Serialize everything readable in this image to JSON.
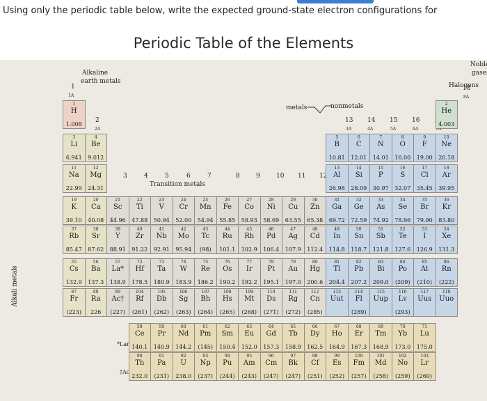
{
  "instruction": "Using only the periodic table below, write the expected ground-state electron configurations for",
  "title": "Periodic Table of the Elements",
  "labels": {
    "alkaline": "Alkaline",
    "earth_metals": "earth metals",
    "noble": "Noble",
    "gases": "gases",
    "halogens": "Halogens",
    "metals": "metals",
    "nonmetals": "nonmetals",
    "transition_metals": "Transition metals",
    "alkali_metals": "Alkali metals",
    "lanthanides": "*Lanthanides",
    "actinides": "†Actinides"
  },
  "group_labels": {
    "g1": "1",
    "g1a": "1A",
    "g2": "2",
    "g2a": "2A",
    "g3": "3",
    "g4": "4",
    "g5": "5",
    "g6": "6",
    "g7": "7",
    "g8": "8",
    "g9": "9",
    "g10": "10",
    "g11": "11",
    "g12": "12",
    "g13": "13",
    "g13a": "3A",
    "g14": "14",
    "g14a": "4A",
    "g15": "15",
    "g15a": "5A",
    "g16": "16",
    "g16a": "6A",
    "g17": "17",
    "g17a": "7A",
    "g18": "18",
    "g18a": "8A"
  },
  "elements": [
    {
      "z": "1",
      "s": "H",
      "m": "1.008",
      "c": 1,
      "r": 1,
      "k": "h"
    },
    {
      "z": "2",
      "s": "He",
      "m": "4.003",
      "c": 18,
      "r": 1,
      "k": "he"
    },
    {
      "z": "3",
      "s": "Li",
      "m": "6.941",
      "c": 1,
      "r": 2,
      "k": "s"
    },
    {
      "z": "4",
      "s": "Be",
      "m": "9.012",
      "c": 2,
      "r": 2,
      "k": "s"
    },
    {
      "z": "5",
      "s": "B",
      "m": "10.81",
      "c": 13,
      "r": 2,
      "k": "p"
    },
    {
      "z": "6",
      "s": "C",
      "m": "12.01",
      "c": 14,
      "r": 2,
      "k": "p"
    },
    {
      "z": "7",
      "s": "N",
      "m": "14.01",
      "c": 15,
      "r": 2,
      "k": "p"
    },
    {
      "z": "8",
      "s": "O",
      "m": "16.00",
      "c": 16,
      "r": 2,
      "k": "p"
    },
    {
      "z": "9",
      "s": "F",
      "m": "19.00",
      "c": 17,
      "r": 2,
      "k": "p"
    },
    {
      "z": "10",
      "s": "Ne",
      "m": "20.18",
      "c": 18,
      "r": 2,
      "k": "p"
    },
    {
      "z": "11",
      "s": "Na",
      "m": "22.99",
      "c": 1,
      "r": 3,
      "k": "s"
    },
    {
      "z": "12",
      "s": "Mg",
      "m": "24.31",
      "c": 2,
      "r": 3,
      "k": "s"
    },
    {
      "z": "13",
      "s": "Al",
      "m": "26.98",
      "c": 13,
      "r": 3,
      "k": "p"
    },
    {
      "z": "14",
      "s": "Si",
      "m": "28.09",
      "c": 14,
      "r": 3,
      "k": "p"
    },
    {
      "z": "15",
      "s": "P",
      "m": "30.97",
      "c": 15,
      "r": 3,
      "k": "p"
    },
    {
      "z": "16",
      "s": "S",
      "m": "32.07",
      "c": 16,
      "r": 3,
      "k": "p"
    },
    {
      "z": "17",
      "s": "Cl",
      "m": "35.45",
      "c": 17,
      "r": 3,
      "k": "p"
    },
    {
      "z": "18",
      "s": "Ar",
      "m": "39.95",
      "c": 18,
      "r": 3,
      "k": "p"
    },
    {
      "z": "19",
      "s": "K",
      "m": "39.10",
      "c": 1,
      "r": 4,
      "k": "s"
    },
    {
      "z": "20",
      "s": "Ca",
      "m": "40.08",
      "c": 2,
      "r": 4,
      "k": "s"
    },
    {
      "z": "21",
      "s": "Sc",
      "m": "44.96",
      "c": 3,
      "r": 4,
      "k": "d"
    },
    {
      "z": "22",
      "s": "Ti",
      "m": "47.88",
      "c": 4,
      "r": 4,
      "k": "d"
    },
    {
      "z": "23",
      "s": "V",
      "m": "50.94",
      "c": 5,
      "r": 4,
      "k": "d"
    },
    {
      "z": "24",
      "s": "Cr",
      "m": "52.00",
      "c": 6,
      "r": 4,
      "k": "d"
    },
    {
      "z": "25",
      "s": "Mn",
      "m": "54.94",
      "c": 7,
      "r": 4,
      "k": "d"
    },
    {
      "z": "26",
      "s": "Fe",
      "m": "55.85",
      "c": 8,
      "r": 4,
      "k": "d"
    },
    {
      "z": "27",
      "s": "Co",
      "m": "58.93",
      "c": 9,
      "r": 4,
      "k": "d"
    },
    {
      "z": "28",
      "s": "Ni",
      "m": "58.69",
      "c": 10,
      "r": 4,
      "k": "d"
    },
    {
      "z": "29",
      "s": "Cu",
      "m": "63.55",
      "c": 11,
      "r": 4,
      "k": "d"
    },
    {
      "z": "30",
      "s": "Zn",
      "m": "65.38",
      "c": 12,
      "r": 4,
      "k": "d"
    },
    {
      "z": "31",
      "s": "Ga",
      "m": "69.72",
      "c": 13,
      "r": 4,
      "k": "p"
    },
    {
      "z": "32",
      "s": "Ge",
      "m": "72.59",
      "c": 14,
      "r": 4,
      "k": "p"
    },
    {
      "z": "33",
      "s": "As",
      "m": "74.92",
      "c": 15,
      "r": 4,
      "k": "p"
    },
    {
      "z": "34",
      "s": "Se",
      "m": "78.96",
      "c": 16,
      "r": 4,
      "k": "p"
    },
    {
      "z": "35",
      "s": "Br",
      "m": "79.90",
      "c": 17,
      "r": 4,
      "k": "p"
    },
    {
      "z": "36",
      "s": "Kr",
      "m": "83.80",
      "c": 18,
      "r": 4,
      "k": "p"
    },
    {
      "z": "37",
      "s": "Rb",
      "m": "85.47",
      "c": 1,
      "r": 5,
      "k": "s"
    },
    {
      "z": "38",
      "s": "Sr",
      "m": "87.62",
      "c": 2,
      "r": 5,
      "k": "s"
    },
    {
      "z": "39",
      "s": "Y",
      "m": "88.91",
      "c": 3,
      "r": 5,
      "k": "d"
    },
    {
      "z": "40",
      "s": "Zr",
      "m": "91.22",
      "c": 4,
      "r": 5,
      "k": "d"
    },
    {
      "z": "41",
      "s": "Nb",
      "m": "92.91",
      "c": 5,
      "r": 5,
      "k": "d"
    },
    {
      "z": "42",
      "s": "Mo",
      "m": "95.94",
      "c": 6,
      "r": 5,
      "k": "d"
    },
    {
      "z": "43",
      "s": "Tc",
      "m": "(98)",
      "c": 7,
      "r": 5,
      "k": "d"
    },
    {
      "z": "44",
      "s": "Ru",
      "m": "101.1",
      "c": 8,
      "r": 5,
      "k": "d"
    },
    {
      "z": "45",
      "s": "Rh",
      "m": "102.9",
      "c": 9,
      "r": 5,
      "k": "d"
    },
    {
      "z": "46",
      "s": "Pd",
      "m": "106.4",
      "c": 10,
      "r": 5,
      "k": "d"
    },
    {
      "z": "47",
      "s": "Ag",
      "m": "107.9",
      "c": 11,
      "r": 5,
      "k": "d"
    },
    {
      "z": "48",
      "s": "Cd",
      "m": "112.4",
      "c": 12,
      "r": 5,
      "k": "d"
    },
    {
      "z": "49",
      "s": "In",
      "m": "114.8",
      "c": 13,
      "r": 5,
      "k": "p"
    },
    {
      "z": "50",
      "s": "Sn",
      "m": "118.7",
      "c": 14,
      "r": 5,
      "k": "p"
    },
    {
      "z": "51",
      "s": "Sb",
      "m": "121.8",
      "c": 15,
      "r": 5,
      "k": "p"
    },
    {
      "z": "52",
      "s": "Te",
      "m": "127.6",
      "c": 16,
      "r": 5,
      "k": "p"
    },
    {
      "z": "53",
      "s": "I",
      "m": "126.9",
      "c": 17,
      "r": 5,
      "k": "p"
    },
    {
      "z": "54",
      "s": "Xe",
      "m": "131.3",
      "c": 18,
      "r": 5,
      "k": "p"
    },
    {
      "z": "55",
      "s": "Cs",
      "m": "132.9",
      "c": 1,
      "r": 6,
      "k": "s"
    },
    {
      "z": "56",
      "s": "Ba",
      "m": "137.3",
      "c": 2,
      "r": 6,
      "k": "s"
    },
    {
      "z": "57",
      "s": "La*",
      "m": "138.9",
      "c": 3,
      "r": 6,
      "k": "d"
    },
    {
      "z": "72",
      "s": "Hf",
      "m": "178.5",
      "c": 4,
      "r": 6,
      "k": "d"
    },
    {
      "z": "73",
      "s": "Ta",
      "m": "180.9",
      "c": 5,
      "r": 6,
      "k": "d"
    },
    {
      "z": "74",
      "s": "W",
      "m": "183.9",
      "c": 6,
      "r": 6,
      "k": "d"
    },
    {
      "z": "75",
      "s": "Re",
      "m": "186.2",
      "c": 7,
      "r": 6,
      "k": "d"
    },
    {
      "z": "76",
      "s": "Os",
      "m": "190.2",
      "c": 8,
      "r": 6,
      "k": "d"
    },
    {
      "z": "77",
      "s": "Ir",
      "m": "192.2",
      "c": 9,
      "r": 6,
      "k": "d"
    },
    {
      "z": "78",
      "s": "Pt",
      "m": "195.1",
      "c": 10,
      "r": 6,
      "k": "d"
    },
    {
      "z": "79",
      "s": "Au",
      "m": "197.0",
      "c": 11,
      "r": 6,
      "k": "d"
    },
    {
      "z": "80",
      "s": "Hg",
      "m": "200.6",
      "c": 12,
      "r": 6,
      "k": "d"
    },
    {
      "z": "81",
      "s": "Tl",
      "m": "204.4",
      "c": 13,
      "r": 6,
      "k": "p"
    },
    {
      "z": "82",
      "s": "Pb",
      "m": "207.2",
      "c": 14,
      "r": 6,
      "k": "p"
    },
    {
      "z": "83",
      "s": "Bi",
      "m": "209.0",
      "c": 15,
      "r": 6,
      "k": "p"
    },
    {
      "z": "84",
      "s": "Po",
      "m": "(209)",
      "c": 16,
      "r": 6,
      "k": "p"
    },
    {
      "z": "85",
      "s": "At",
      "m": "(210)",
      "c": 17,
      "r": 6,
      "k": "p"
    },
    {
      "z": "86",
      "s": "Rn",
      "m": "(222)",
      "c": 18,
      "r": 6,
      "k": "p"
    },
    {
      "z": "87",
      "s": "Fr",
      "m": "(223)",
      "c": 1,
      "r": 7,
      "k": "s"
    },
    {
      "z": "88",
      "s": "Ra",
      "m": "226",
      "c": 2,
      "r": 7,
      "k": "s"
    },
    {
      "z": "89",
      "s": "Ac†",
      "m": "(227)",
      "c": 3,
      "r": 7,
      "k": "d"
    },
    {
      "z": "104",
      "s": "Rf",
      "m": "(261)",
      "c": 4,
      "r": 7,
      "k": "d"
    },
    {
      "z": "105",
      "s": "Db",
      "m": "(262)",
      "c": 5,
      "r": 7,
      "k": "d"
    },
    {
      "z": "106",
      "s": "Sg",
      "m": "(263)",
      "c": 6,
      "r": 7,
      "k": "d"
    },
    {
      "z": "107",
      "s": "Bh",
      "m": "(264)",
      "c": 7,
      "r": 7,
      "k": "d"
    },
    {
      "z": "108",
      "s": "Hs",
      "m": "(265)",
      "c": 8,
      "r": 7,
      "k": "d"
    },
    {
      "z": "109",
      "s": "Mt",
      "m": "(268)",
      "c": 9,
      "r": 7,
      "k": "d"
    },
    {
      "z": "110",
      "s": "Ds",
      "m": "(271)",
      "c": 10,
      "r": 7,
      "k": "d"
    },
    {
      "z": "111",
      "s": "Rg",
      "m": "(272)",
      "c": 11,
      "r": 7,
      "k": "d"
    },
    {
      "z": "112",
      "s": "Cn",
      "m": "(285)",
      "c": 12,
      "r": 7,
      "k": "d"
    },
    {
      "z": "113",
      "s": "Uut",
      "m": "",
      "c": 13,
      "r": 7,
      "k": "p"
    },
    {
      "z": "114",
      "s": "Fl",
      "m": "(289)",
      "c": 14,
      "r": 7,
      "k": "p"
    },
    {
      "z": "115",
      "s": "Uup",
      "m": "",
      "c": 15,
      "r": 7,
      "k": "p"
    },
    {
      "z": "116",
      "s": "Lv",
      "m": "(293)",
      "c": 16,
      "r": 7,
      "k": "p"
    },
    {
      "z": "117",
      "s": "Uus",
      "m": "",
      "c": 17,
      "r": 7,
      "k": "p"
    },
    {
      "z": "118",
      "s": "Uuo",
      "m": "",
      "c": 18,
      "r": 7,
      "k": "p"
    },
    {
      "z": "58",
      "s": "Ce",
      "m": "140.1",
      "c": 4,
      "r": 8,
      "k": "f"
    },
    {
      "z": "59",
      "s": "Pr",
      "m": "140.9",
      "c": 5,
      "r": 8,
      "k": "f"
    },
    {
      "z": "60",
      "s": "Nd",
      "m": "144.2",
      "c": 6,
      "r": 8,
      "k": "f"
    },
    {
      "z": "61",
      "s": "Pm",
      "m": "(145)",
      "c": 7,
      "r": 8,
      "k": "f"
    },
    {
      "z": "62",
      "s": "Sm",
      "m": "150.4",
      "c": 8,
      "r": 8,
      "k": "f"
    },
    {
      "z": "63",
      "s": "Eu",
      "m": "152.0",
      "c": 9,
      "r": 8,
      "k": "f"
    },
    {
      "z": "64",
      "s": "Gd",
      "m": "157.3",
      "c": 10,
      "r": 8,
      "k": "f"
    },
    {
      "z": "65",
      "s": "Tb",
      "m": "158.9",
      "c": 11,
      "r": 8,
      "k": "f"
    },
    {
      "z": "66",
      "s": "Dy",
      "m": "162.5",
      "c": 12,
      "r": 8,
      "k": "f"
    },
    {
      "z": "67",
      "s": "Ho",
      "m": "164.9",
      "c": 13,
      "r": 8,
      "k": "f"
    },
    {
      "z": "68",
      "s": "Er",
      "m": "167.3",
      "c": 14,
      "r": 8,
      "k": "f"
    },
    {
      "z": "69",
      "s": "Tm",
      "m": "168.9",
      "c": 15,
      "r": 8,
      "k": "f"
    },
    {
      "z": "70",
      "s": "Yb",
      "m": "173.0",
      "c": 16,
      "r": 8,
      "k": "f"
    },
    {
      "z": "71",
      "s": "Lu",
      "m": "175.0",
      "c": 17,
      "r": 8,
      "k": "f"
    },
    {
      "z": "90",
      "s": "Th",
      "m": "232.0",
      "c": 4,
      "r": 9,
      "k": "f"
    },
    {
      "z": "91",
      "s": "Pa",
      "m": "(231)",
      "c": 5,
      "r": 9,
      "k": "f"
    },
    {
      "z": "92",
      "s": "U",
      "m": "238.0",
      "c": 6,
      "r": 9,
      "k": "f"
    },
    {
      "z": "93",
      "s": "Np",
      "m": "(237)",
      "c": 7,
      "r": 9,
      "k": "f"
    },
    {
      "z": "94",
      "s": "Pu",
      "m": "(244)",
      "c": 8,
      "r": 9,
      "k": "f"
    },
    {
      "z": "95",
      "s": "Am",
      "m": "(243)",
      "c": 9,
      "r": 9,
      "k": "f"
    },
    {
      "z": "96",
      "s": "Cm",
      "m": "(247)",
      "c": 10,
      "r": 9,
      "k": "f"
    },
    {
      "z": "97",
      "s": "Bk",
      "m": "(247)",
      "c": 11,
      "r": 9,
      "k": "f"
    },
    {
      "z": "98",
      "s": "Cf",
      "m": "(251)",
      "c": 12,
      "r": 9,
      "k": "f"
    },
    {
      "z": "99",
      "s": "Es",
      "m": "(252)",
      "c": 13,
      "r": 9,
      "k": "f"
    },
    {
      "z": "100",
      "s": "Fm",
      "m": "(257)",
      "c": 14,
      "r": 9,
      "k": "f"
    },
    {
      "z": "101",
      "s": "Md",
      "m": "(258)",
      "c": 15,
      "r": 9,
      "k": "f"
    },
    {
      "z": "102",
      "s": "No",
      "m": "(259)",
      "c": 16,
      "r": 9,
      "k": "f"
    },
    {
      "z": "103",
      "s": "Lr",
      "m": "(260)",
      "c": 17,
      "r": 9,
      "k": "f"
    }
  ]
}
